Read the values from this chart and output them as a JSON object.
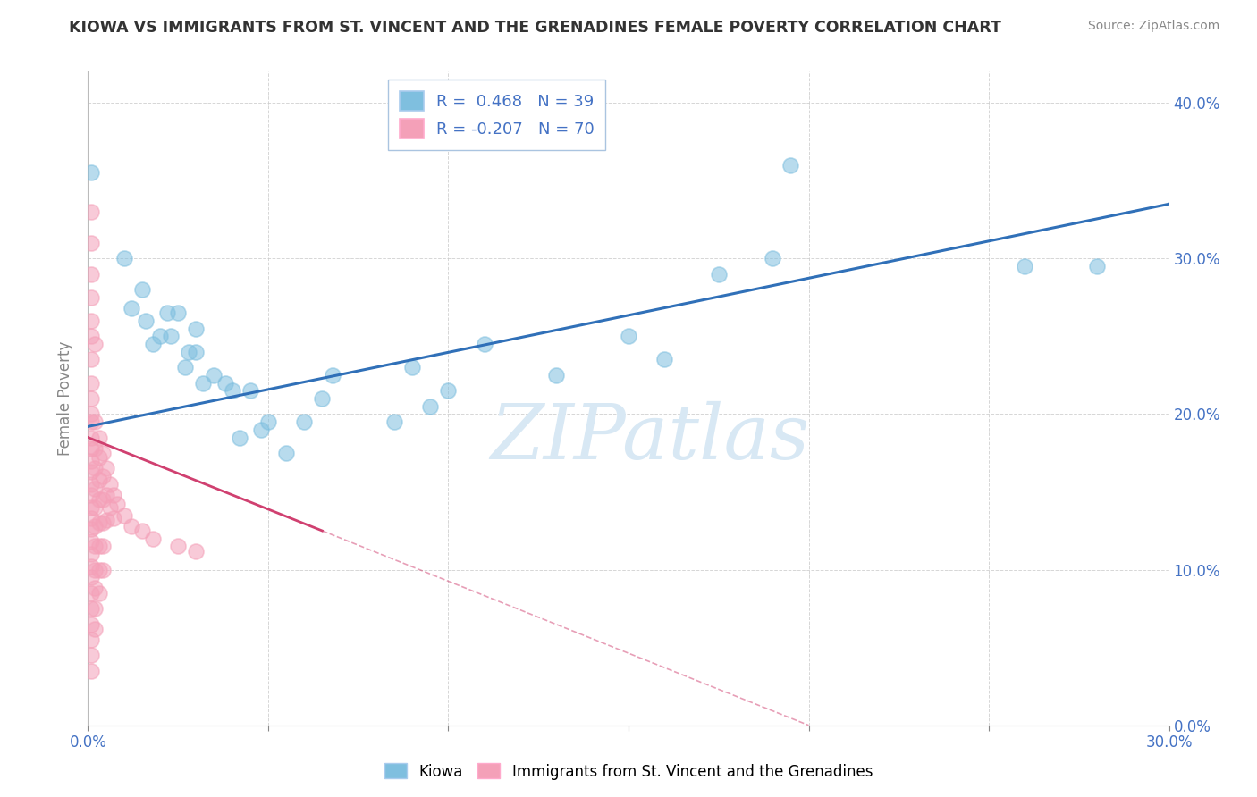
{
  "title": "KIOWA VS IMMIGRANTS FROM ST. VINCENT AND THE GRENADINES FEMALE POVERTY CORRELATION CHART",
  "source": "Source: ZipAtlas.com",
  "ylabel": "Female Poverty",
  "x_min": 0.0,
  "x_max": 0.3,
  "y_min": 0.0,
  "y_max": 0.42,
  "x_ticks": [
    0.0,
    0.05,
    0.1,
    0.15,
    0.2,
    0.25,
    0.3
  ],
  "y_ticks": [
    0.0,
    0.1,
    0.2,
    0.3,
    0.4
  ],
  "legend1_label": "Kiowa",
  "legend2_label": "Immigrants from St. Vincent and the Grenadines",
  "R1": 0.468,
  "N1": 39,
  "R2": -0.207,
  "N2": 70,
  "blue_color": "#7fbfdf",
  "pink_color": "#f4a0b8",
  "blue_line_color": "#3070b8",
  "pink_line_color": "#d04070",
  "watermark_color": "#d8e8f4",
  "blue_dots": [
    [
      0.001,
      0.355
    ],
    [
      0.01,
      0.3
    ],
    [
      0.012,
      0.268
    ],
    [
      0.015,
      0.28
    ],
    [
      0.016,
      0.26
    ],
    [
      0.018,
      0.245
    ],
    [
      0.02,
      0.25
    ],
    [
      0.022,
      0.265
    ],
    [
      0.023,
      0.25
    ],
    [
      0.025,
      0.265
    ],
    [
      0.027,
      0.23
    ],
    [
      0.028,
      0.24
    ],
    [
      0.03,
      0.255
    ],
    [
      0.03,
      0.24
    ],
    [
      0.032,
      0.22
    ],
    [
      0.035,
      0.225
    ],
    [
      0.038,
      0.22
    ],
    [
      0.04,
      0.215
    ],
    [
      0.042,
      0.185
    ],
    [
      0.045,
      0.215
    ],
    [
      0.048,
      0.19
    ],
    [
      0.05,
      0.195
    ],
    [
      0.055,
      0.175
    ],
    [
      0.06,
      0.195
    ],
    [
      0.065,
      0.21
    ],
    [
      0.068,
      0.225
    ],
    [
      0.085,
      0.195
    ],
    [
      0.09,
      0.23
    ],
    [
      0.095,
      0.205
    ],
    [
      0.1,
      0.215
    ],
    [
      0.11,
      0.245
    ],
    [
      0.13,
      0.225
    ],
    [
      0.15,
      0.25
    ],
    [
      0.16,
      0.235
    ],
    [
      0.175,
      0.29
    ],
    [
      0.19,
      0.3
    ],
    [
      0.195,
      0.36
    ],
    [
      0.26,
      0.295
    ],
    [
      0.28,
      0.295
    ]
  ],
  "pink_dots": [
    [
      0.001,
      0.33
    ],
    [
      0.001,
      0.31
    ],
    [
      0.001,
      0.29
    ],
    [
      0.001,
      0.275
    ],
    [
      0.001,
      0.26
    ],
    [
      0.001,
      0.25
    ],
    [
      0.001,
      0.235
    ],
    [
      0.001,
      0.22
    ],
    [
      0.001,
      0.21
    ],
    [
      0.001,
      0.2
    ],
    [
      0.001,
      0.195
    ],
    [
      0.001,
      0.185
    ],
    [
      0.001,
      0.178
    ],
    [
      0.001,
      0.17
    ],
    [
      0.001,
      0.163
    ],
    [
      0.001,
      0.155
    ],
    [
      0.001,
      0.148
    ],
    [
      0.001,
      0.14
    ],
    [
      0.001,
      0.133
    ],
    [
      0.001,
      0.126
    ],
    [
      0.001,
      0.118
    ],
    [
      0.001,
      0.11
    ],
    [
      0.001,
      0.102
    ],
    [
      0.001,
      0.095
    ],
    [
      0.001,
      0.085
    ],
    [
      0.001,
      0.075
    ],
    [
      0.001,
      0.065
    ],
    [
      0.001,
      0.055
    ],
    [
      0.001,
      0.045
    ],
    [
      0.001,
      0.035
    ],
    [
      0.002,
      0.245
    ],
    [
      0.002,
      0.195
    ],
    [
      0.002,
      0.178
    ],
    [
      0.002,
      0.165
    ],
    [
      0.002,
      0.152
    ],
    [
      0.002,
      0.14
    ],
    [
      0.002,
      0.128
    ],
    [
      0.002,
      0.115
    ],
    [
      0.002,
      0.1
    ],
    [
      0.002,
      0.088
    ],
    [
      0.002,
      0.075
    ],
    [
      0.002,
      0.062
    ],
    [
      0.003,
      0.185
    ],
    [
      0.003,
      0.172
    ],
    [
      0.003,
      0.158
    ],
    [
      0.003,
      0.145
    ],
    [
      0.003,
      0.13
    ],
    [
      0.003,
      0.115
    ],
    [
      0.003,
      0.1
    ],
    [
      0.003,
      0.085
    ],
    [
      0.004,
      0.175
    ],
    [
      0.004,
      0.16
    ],
    [
      0.004,
      0.145
    ],
    [
      0.004,
      0.13
    ],
    [
      0.004,
      0.115
    ],
    [
      0.004,
      0.1
    ],
    [
      0.005,
      0.165
    ],
    [
      0.005,
      0.148
    ],
    [
      0.005,
      0.132
    ],
    [
      0.006,
      0.155
    ],
    [
      0.006,
      0.14
    ],
    [
      0.007,
      0.148
    ],
    [
      0.007,
      0.133
    ],
    [
      0.008,
      0.142
    ],
    [
      0.01,
      0.135
    ],
    [
      0.012,
      0.128
    ],
    [
      0.015,
      0.125
    ],
    [
      0.018,
      0.12
    ],
    [
      0.025,
      0.115
    ],
    [
      0.03,
      0.112
    ]
  ],
  "blue_line": [
    [
      0.0,
      0.192
    ],
    [
      0.3,
      0.335
    ]
  ],
  "pink_line_solid": [
    [
      0.0,
      0.185
    ],
    [
      0.065,
      0.125
    ]
  ],
  "pink_line_dashed": [
    [
      0.065,
      0.125
    ],
    [
      0.2,
      0.0
    ]
  ]
}
